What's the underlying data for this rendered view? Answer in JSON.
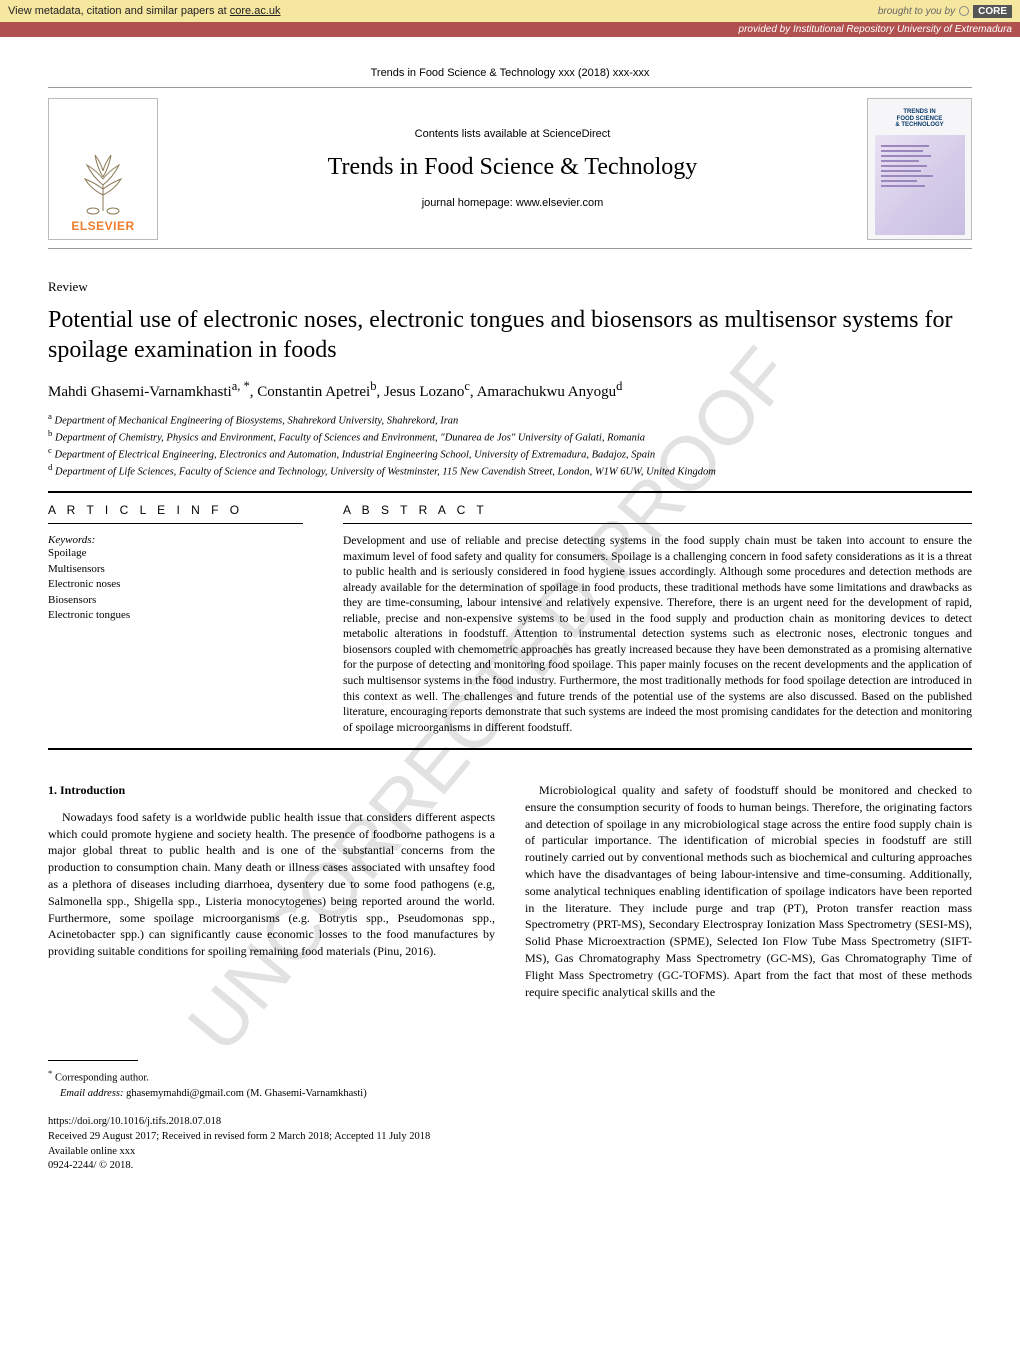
{
  "banner": {
    "left_prefix": "View metadata, citation and similar papers at ",
    "left_link": "core.ac.uk",
    "right_prefix": "brought to you by ",
    "core_label": "CORE"
  },
  "provider_strip": "provided by Institutional Repository University of Extremadura",
  "journal_ref": "Trends in Food Science & Technology xxx (2018) xxx-xxx",
  "masthead": {
    "contents_line": "Contents lists available at ScienceDirect",
    "journal_title": "Trends in Food Science & Technology",
    "homepage_line": "journal homepage: www.elsevier.com",
    "publisher_word": "ELSEVIER",
    "cover_title": "TRENDS IN\nFOOD SCIENCE\n& TECHNOLOGY"
  },
  "watermark_text": "UNCORRECTED PROOF",
  "review_label": "Review",
  "paper_title": "Potential use of electronic noses, electronic tongues and biosensors as multisensor systems for spoilage examination in foods",
  "authors_html": "Mahdi Ghasemi-Varnamkhasti<sup>a, *</sup>, Constantin Apetrei<sup>b</sup>, Jesus Lozano<sup>c</sup>, Amarachukwu Anyogu<sup>d</sup>",
  "affils": [
    {
      "mark": "a",
      "text": "Department of Mechanical Engineering of Biosystems, Shahrekord University, Shahrekord, Iran"
    },
    {
      "mark": "b",
      "text": "Department of Chemistry, Physics and Environment, Faculty of Sciences and Environment, \"Dunarea de Jos\" University of Galati, Romania"
    },
    {
      "mark": "c",
      "text": "Department of Electrical Engineering, Electronics and Automation, Industrial Engineering School, University of Extremadura, Badajoz, Spain"
    },
    {
      "mark": "d",
      "text": "Department of Life Sciences, Faculty of Science and Technology, University of Westminster, 115 New Cavendish Street, London, W1W 6UW, United Kingdom"
    }
  ],
  "info_head": "A R T I C L E  I N F O",
  "abs_head": "A B S T R A C T",
  "keywords_head": "Keywords:",
  "keywords": [
    "Spoilage",
    "Multisensors",
    "Electronic noses",
    "Biosensors",
    "Electronic tongues"
  ],
  "abstract": "Development and use of reliable and precise detecting systems in the food supply chain must be taken into account to ensure the maximum level of food safety and quality for consumers. Spoilage is a challenging concern in food safety considerations as it is a threat to public health and is seriously considered in food hygiene issues accordingly. Although some procedures and detection methods are already available for the determination of spoilage in food products, these traditional methods have some limitations and drawbacks as they are time-consuming, labour intensive and relatively expensive. Therefore, there is an urgent need for the development of rapid, reliable, precise and non-expensive systems to be used in the food supply and production chain as monitoring devices to detect metabolic alterations in foodstuff. Attention to instrumental detection systems such as electronic noses, electronic tongues and biosensors coupled with chemometric approaches has greatly increased because they have been demonstrated as a promising alternative for the purpose of detecting and monitoring food spoilage. This paper mainly focuses on the recent developments and the application of such multisensor systems in the food industry. Furthermore, the most traditionally methods for food spoilage detection are introduced in this context as well. The challenges and future trends of the potential use of the systems are also discussed. Based on the published literature, encouraging reports demonstrate that such systems are indeed the most promising candidates for the detection and monitoring of spoilage microorganisms in different foodstuff.",
  "section_head": "1.  Introduction",
  "col1_p1": "Nowadays food safety is a worldwide public health issue that considers different aspects which could promote hygiene and society health. The presence of foodborne pathogens is a major global threat to public health and is one of the substantial concerns from the production to consumption chain. Many death or illness cases associated with unsaftey food as a plethora of diseases including diarrhoea, dysentery due to some food pathogens (e.g, Salmonella spp., Shigella spp., Listeria monocytogenes) being reported around the world. Furthermore, some spoilage microorganisms (e.g. Botrytis spp., Pseudomonas spp., Acinetobacter spp.) can significantly cause economic losses to the food manufactures by providing suitable conditions for spoiling remaining food materials (Pinu, 2016).",
  "col2_p1": "Microbiological quality and safety of foodstuff should be monitored and checked to ensure the consumption security of foods to human beings. Therefore, the originating factors and detection of spoilage in any microbiological stage across the entire food supply chain is of particular importance. The identification of microbial species in foodstuff are still routinely carried out by conventional methods such as biochemical and culturing approaches which have the disadvantages of being labour-intensive and time-consuming. Additionally, some analytical techniques enabling identification of spoilage indicators have been reported in the literature. They include purge and trap (PT), Proton transfer reaction mass Spectrometry (PRT-MS), Secondary Electrospray Ionization Mass Spectrometry (SESI-MS), Solid Phase Microextraction (SPME), Selected Ion Flow Tube Mass Spectrometry (SIFT-MS), Gas Chromatography Mass Spectrometry (GC-MS), Gas Chromatography Time of Flight Mass Spectrometry (GC-TOFMS). Apart from the fact that most of these methods require specific analytical skills and the",
  "footnote": {
    "corr": "Corresponding author.",
    "email_label": "Email address:",
    "email": "ghasemymahdi@gmail.com (M. Ghasemi-Varnamkhasti)"
  },
  "doi_block": {
    "doi": "https://doi.org/10.1016/j.tifs.2018.07.018",
    "received": "Received 29 August 2017; Received in revised form 2 March 2018; Accepted 11 July 2018",
    "available": "Available online xxx",
    "issn": "0924-2244/ © 2018."
  },
  "colors": {
    "banner_bg": "#f5e6a0",
    "provider_bg": "#b0504f",
    "elsevier_orange": "#ee7d2d",
    "watermark": "#d9d9d9"
  }
}
